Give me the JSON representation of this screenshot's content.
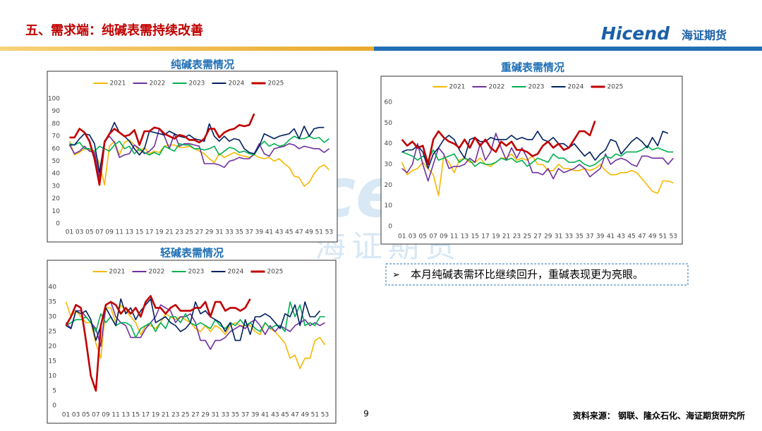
{
  "slide": {
    "title": "五、需求端：纯碱表需持续改善",
    "logo": "Hicend",
    "logo_cn": "海证期货",
    "watermark": "Hicend",
    "watermark_cn": "海证期货",
    "bullet": "本月纯碱表需环比继续回升，重碱表现更为亮眼。",
    "page_number": "9",
    "source": "资料来源： 钢联、隆众石化、海证期货研究所"
  },
  "chart_data": [
    {
      "type": "line",
      "title": "纯碱表需情况",
      "categories": [
        "01",
        null,
        "03",
        null,
        "05",
        null,
        "07",
        null,
        "09",
        null,
        "11",
        null,
        "13",
        null,
        "15",
        null,
        "17",
        null,
        "19",
        null,
        "21",
        null,
        "23",
        null,
        "25",
        null,
        "27",
        null,
        "29",
        null,
        "31",
        null,
        "33",
        null,
        "35",
        null,
        "37",
        null,
        "39",
        null,
        "41",
        null,
        "43",
        null,
        "45",
        null,
        "47",
        null,
        "49",
        null,
        "51",
        null,
        "53"
      ],
      "ylim": [
        0,
        100
      ],
      "yticks": [
        0,
        10,
        20,
        30,
        40,
        50,
        60,
        70,
        80,
        90,
        100
      ],
      "grid": false,
      "legend": "top",
      "series": [
        {
          "name": "2021",
          "color": "#f5b800",
          "values": [
            66,
            55,
            57,
            60,
            59,
            57,
            48,
            31,
            62,
            66,
            55,
            65,
            67,
            63,
            58,
            61,
            56,
            58,
            57,
            62,
            63,
            63,
            61,
            61,
            62,
            60,
            58,
            56,
            52,
            49,
            56,
            53,
            55,
            57,
            55,
            54,
            53,
            55,
            53,
            52,
            53,
            50,
            52,
            48,
            45,
            38,
            37,
            30,
            33,
            40,
            45,
            47,
            43
          ]
        },
        {
          "name": "2022",
          "color": "#7030a0",
          "values": [
            63,
            56,
            58,
            62,
            58,
            57,
            37,
            66,
            70,
            65,
            53,
            55,
            56,
            63,
            60,
            56,
            58,
            62,
            76,
            70,
            60,
            72,
            62,
            64,
            64,
            63,
            62,
            48,
            48,
            48,
            47,
            45,
            50,
            51,
            53,
            52,
            52,
            56,
            64,
            56,
            54,
            60,
            61,
            62,
            64,
            63,
            60,
            62,
            61,
            60,
            60,
            57,
            60
          ]
        },
        {
          "name": "2023",
          "color": "#00b050",
          "values": [
            64,
            63,
            65,
            60,
            60,
            58,
            62,
            60,
            58,
            63,
            66,
            60,
            62,
            56,
            60,
            57,
            55,
            57,
            55,
            62,
            60,
            58,
            64,
            63,
            63,
            60,
            60,
            59,
            60,
            62,
            55,
            58,
            61,
            60,
            57,
            58,
            56,
            55,
            62,
            66,
            62,
            64,
            62,
            63,
            67,
            70,
            68,
            68,
            70,
            68,
            69,
            65,
            68
          ]
        },
        {
          "name": "2024",
          "color": "#002060",
          "values": [
            63,
            63,
            68,
            72,
            71,
            64,
            41,
            66,
            72,
            81,
            73,
            70,
            66,
            60,
            55,
            60,
            74,
            73,
            72,
            71,
            74,
            72,
            70,
            69,
            71,
            68,
            67,
            66,
            80,
            70,
            66,
            70,
            66,
            68,
            67,
            60,
            57,
            56,
            62,
            72,
            70,
            68,
            70,
            71,
            72,
            76,
            68,
            78,
            70,
            76,
            77,
            77,
            null
          ]
        },
        {
          "name": "2025",
          "color": "#c00000",
          "values": [
            69,
            69,
            76,
            73,
            66,
            52,
            31,
            65,
            72,
            76,
            73,
            70,
            71,
            75,
            63,
            74,
            74,
            77,
            76,
            72,
            70,
            68,
            71,
            70,
            67,
            67,
            65,
            68,
            76,
            76,
            69,
            73,
            75,
            76,
            79,
            78,
            79,
            88,
            null,
            null,
            null,
            null,
            null,
            null,
            null,
            null,
            null,
            null,
            null,
            null,
            null,
            null,
            null
          ]
        }
      ]
    },
    {
      "type": "line",
      "title": "重碱表需情况",
      "categories": [
        "01",
        null,
        "03",
        null,
        "05",
        null,
        "07",
        null,
        "09",
        null,
        "11",
        null,
        "13",
        null,
        "15",
        null,
        "17",
        null,
        "19",
        null,
        "21",
        null,
        "23",
        null,
        "25",
        null,
        "27",
        null,
        "29",
        null,
        "31",
        null,
        "33",
        null,
        "35",
        null,
        "37",
        null,
        "39",
        null,
        "41",
        null,
        "43",
        null,
        "45",
        null,
        "47",
        null,
        "49",
        null,
        "51",
        null,
        "53"
      ],
      "ylim": [
        0,
        60
      ],
      "yticks": [
        0,
        10,
        20,
        30,
        40,
        50,
        60
      ],
      "grid": false,
      "legend": "top",
      "series": [
        {
          "name": "2021",
          "color": "#f5b800",
          "values": [
            31,
            25,
            27,
            28,
            31,
            28,
            25,
            15,
            34,
            31,
            26,
            32,
            33,
            31,
            31,
            33,
            30,
            29,
            31,
            33,
            33,
            35,
            32,
            33,
            32,
            34,
            30,
            30,
            27,
            27,
            30,
            28,
            28,
            27,
            27,
            28,
            27,
            28,
            30,
            27,
            25,
            25,
            26,
            26,
            27,
            26,
            23,
            20,
            17,
            16,
            22,
            22,
            21
          ]
        },
        {
          "name": "2022",
          "color": "#7030a0",
          "values": [
            28,
            26,
            30,
            40,
            30,
            22,
            30,
            38,
            35,
            28,
            29,
            29,
            30,
            33,
            31,
            40,
            32,
            36,
            45,
            38,
            32,
            38,
            33,
            38,
            33,
            26,
            26,
            25,
            28,
            23,
            28,
            26,
            27,
            28,
            30,
            28,
            24,
            26,
            28,
            35,
            30,
            32,
            33,
            32,
            30,
            29,
            34,
            34,
            33,
            33,
            33,
            30,
            33
          ]
        },
        {
          "name": "2023",
          "color": "#00b050",
          "values": [
            36,
            35,
            34,
            32,
            34,
            32,
            37,
            32,
            33,
            34,
            35,
            31,
            33,
            32,
            29,
            31,
            30,
            30,
            31,
            33,
            32,
            33,
            31,
            32,
            29,
            31,
            33,
            32,
            31,
            35,
            33,
            33,
            31,
            31,
            32,
            30,
            29,
            30,
            32,
            34,
            33,
            35,
            34,
            36,
            36,
            36,
            37,
            39,
            37,
            38,
            37,
            36,
            36
          ]
        },
        {
          "name": "2024",
          "color": "#002060",
          "values": [
            36,
            37,
            37,
            39,
            36,
            28,
            35,
            38,
            42,
            44,
            42,
            37,
            33,
            42,
            43,
            41,
            41,
            43,
            42,
            42,
            42,
            44,
            42,
            43,
            42,
            42,
            46,
            42,
            41,
            43,
            40,
            40,
            38,
            40,
            37,
            34,
            36,
            32,
            35,
            37,
            42,
            41,
            35,
            38,
            41,
            43,
            41,
            38,
            43,
            39,
            46,
            45,
            null
          ]
        },
        {
          "name": "2025",
          "color": "#c00000",
          "values": [
            42,
            39,
            41,
            38,
            39,
            30,
            42,
            46,
            43,
            41,
            40,
            38,
            42,
            38,
            43,
            39,
            42,
            38,
            36,
            41,
            39,
            41,
            37,
            37,
            36,
            34,
            35,
            39,
            41,
            38,
            40,
            37,
            38,
            42,
            46,
            46,
            44,
            51,
            null,
            null,
            null,
            null,
            null,
            null,
            null,
            null,
            null,
            null,
            null,
            null,
            null,
            null,
            null
          ]
        }
      ]
    },
    {
      "type": "line",
      "title": "轻碱表需情况",
      "categories": [
        "01",
        null,
        "03",
        null,
        "05",
        null,
        "07",
        null,
        "09",
        null,
        "11",
        null,
        "13",
        null,
        "15",
        null,
        "17",
        null,
        "19",
        null,
        "21",
        null,
        "23",
        null,
        "25",
        null,
        "27",
        null,
        "29",
        null,
        "31",
        null,
        "33",
        null,
        "35",
        null,
        "37",
        null,
        "39",
        null,
        "41",
        null,
        "43",
        null,
        "45",
        null,
        "47",
        null,
        "49",
        null,
        "51",
        null,
        "53"
      ],
      "ylim": [
        0,
        40
      ],
      "yticks": [
        0,
        5,
        10,
        15,
        20,
        25,
        30,
        35,
        40
      ],
      "grid": false,
      "legend": "top",
      "series": [
        {
          "name": "2021",
          "color": "#f5b800",
          "values": [
            35,
            30,
            32,
            30,
            28,
            28,
            21,
            16,
            33,
            33,
            28,
            34,
            32,
            30,
            28,
            24,
            27,
            27,
            26,
            28,
            31,
            30,
            29,
            30,
            29,
            28,
            26,
            25,
            27,
            25,
            27,
            26,
            24,
            27,
            28,
            27,
            27,
            27,
            25,
            24,
            28,
            26,
            25,
            23,
            21,
            16,
            17,
            12.5,
            16,
            16,
            22,
            23,
            20.5
          ]
        },
        {
          "name": "2022",
          "color": "#7030a0",
          "values": [
            28,
            26,
            32,
            32,
            30,
            28,
            26,
            20,
            34,
            35,
            30,
            28,
            27,
            23,
            23,
            23,
            26,
            28,
            30,
            34,
            33,
            32,
            28,
            30,
            30,
            31,
            28,
            22,
            22,
            19,
            22,
            22,
            23,
            25,
            26,
            27,
            26,
            28,
            29,
            27,
            24,
            27,
            25,
            27,
            26,
            25,
            27,
            28,
            29,
            27,
            28,
            27,
            28
          ]
        },
        {
          "name": "2023",
          "color": "#00b050",
          "values": [
            27,
            28,
            29,
            29,
            30,
            28,
            25,
            31,
            28,
            30,
            27,
            28,
            28,
            27,
            23,
            26,
            27,
            28,
            25,
            28,
            26,
            30,
            30,
            28,
            31,
            28,
            27,
            28,
            27,
            26,
            29,
            27,
            26,
            28,
            27,
            29,
            27,
            28,
            26,
            25,
            28,
            26,
            27,
            27,
            25,
            35,
            30,
            34,
            27,
            28,
            27,
            30,
            30
          ]
        },
        {
          "name": "2024",
          "color": "#002060",
          "values": [
            27,
            26,
            32,
            31,
            32,
            29,
            22,
            27,
            33,
            30,
            27,
            36,
            31,
            33,
            29,
            32,
            34,
            36,
            28,
            29,
            30,
            28,
            27,
            25,
            26,
            28,
            35,
            31,
            32,
            30,
            29,
            28,
            25,
            28,
            22,
            22,
            29,
            24,
            30,
            30,
            31,
            30,
            28,
            26,
            31,
            30,
            34,
            27,
            35,
            30,
            30,
            32,
            null
          ]
        },
        {
          "name": "2025",
          "color": "#c00000",
          "values": [
            27,
            30,
            34,
            33,
            22,
            10,
            5,
            27,
            34,
            35,
            34,
            31,
            33,
            31,
            33,
            30,
            35,
            37,
            33,
            33,
            31,
            33,
            34,
            32,
            32,
            32,
            33,
            33,
            35,
            30,
            35,
            35,
            32,
            33,
            33,
            32,
            33,
            36,
            null,
            null,
            null,
            null,
            null,
            null,
            null,
            null,
            null,
            null,
            null,
            null,
            null,
            null,
            null
          ]
        }
      ]
    }
  ]
}
